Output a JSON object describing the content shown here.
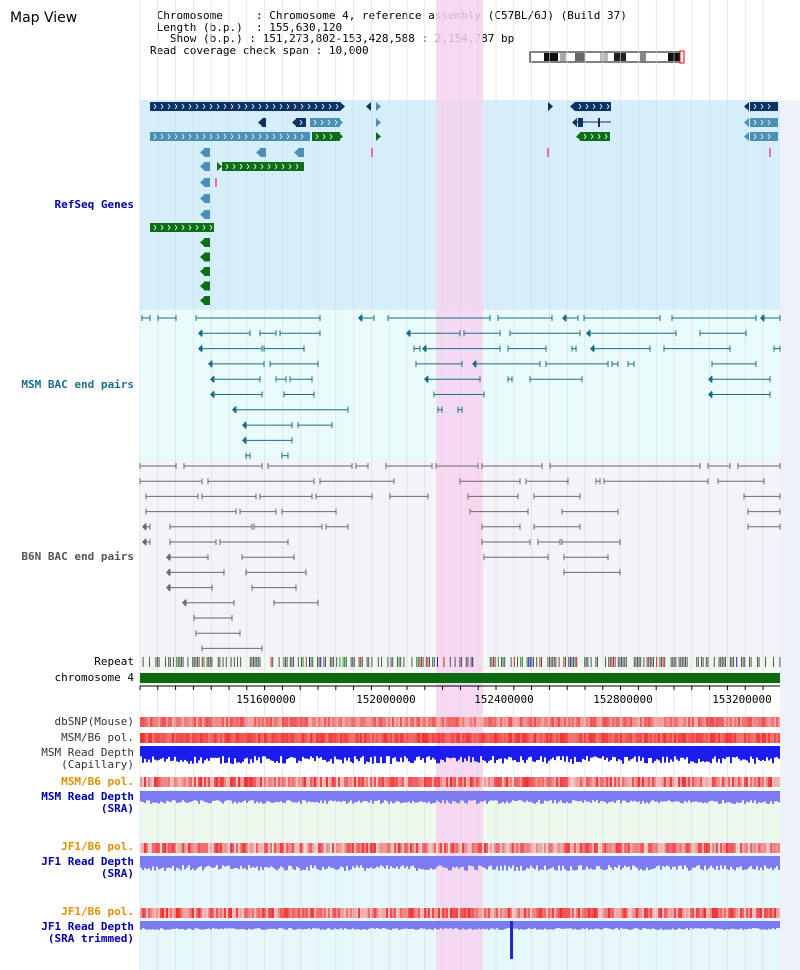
{
  "title": "Map View",
  "info": {
    "chromosome_label": "Chromosome",
    "chromosome_value": "Chromosome 4, reference assembly (C57BL/6J) (Build 37)",
    "length_label": "Length (b.p.)",
    "length_value": "155,630,120",
    "show_label": "Show (b.p.)",
    "show_value": "151,273,802-153,428,588 : 2,154,787 bp",
    "coverage_label": "Read coverage check span",
    "coverage_value": "10,000"
  },
  "tracks": {
    "refseq": "RefSeq Genes",
    "msm_bac": "MSM BAC end pairs",
    "b6n_bac": "B6N BAC end pairs",
    "repeat": "Repeat",
    "chromosome": "chromosome 4",
    "dbsnp": "dbSNP(Mouse)",
    "msm_b6_pol": "MSM/B6 pol.",
    "msm_depth_cap_1": "MSM Read Depth",
    "msm_depth_cap_2": "(Capillary)",
    "msm_b6_pol_2": "MSM/B6 pol.",
    "msm_depth_sra_1": "MSM Read Depth",
    "msm_depth_sra_2": "(SRA)",
    "jf1_b6_pol": "JF1/B6 pol.",
    "jf1_depth_sra_1": "JF1 Read Depth",
    "jf1_depth_sra_2": "(SRA)",
    "jf1_b6_pol_2": "JF1/B6 pol.",
    "jf1_depth_trim_1": "JF1 Read Depth",
    "jf1_depth_trim_2": "(SRA trimmed)"
  },
  "axis_ticks": [
    "151600000",
    "152000000",
    "152400000",
    "152800000",
    "153200000"
  ],
  "colors": {
    "refseq_bg": "#d6eef9",
    "msm_bg": "#e9fbfb",
    "b6n_bg": "#f3f3f9",
    "highlight": "#f7d2f0",
    "dark_gene": "#0c3164",
    "mid_gene": "#4c90b8",
    "green_gene": "#0d6e18",
    "chrom_bar": "#0a6a10",
    "msm_bac": "#1a6d8a",
    "b6n_bac": "#6a6a6a",
    "pol_red": "#f04848",
    "depth_blue": "#1c1cee",
    "depth_light": "#7c7cf0",
    "label_blue": "#0000aa",
    "label_teal": "#1a6d8a",
    "label_orange": "#e09000"
  }
}
